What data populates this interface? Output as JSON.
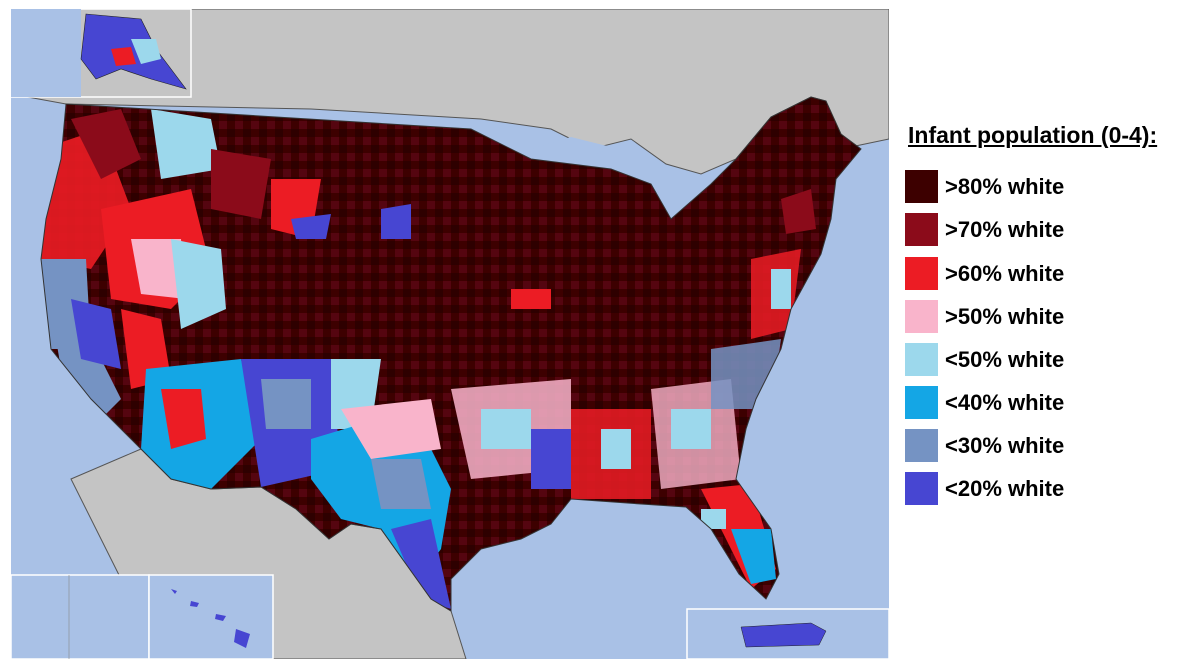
{
  "legend": {
    "title": "Infant population (0-4):",
    "items": [
      {
        "label": ">80% white",
        "color": "#3d0000"
      },
      {
        "label": ">70% white",
        "color": "#8b0b1a"
      },
      {
        "label": ">60% white",
        "color": "#ec1c24"
      },
      {
        "label": ">50% white",
        "color": "#f9b4cb"
      },
      {
        "label": "<50% white",
        "color": "#9cd8ec"
      },
      {
        "label": "<40% white",
        "color": "#14a6e5"
      },
      {
        "label": "<30% white",
        "color": "#7593c3"
      },
      {
        "label": "<20% white",
        "color": "#4746d2"
      }
    ]
  },
  "map": {
    "ocean_color": "#a9c1e6",
    "land_color": "#c4c4c4",
    "border_color": "#555555"
  }
}
